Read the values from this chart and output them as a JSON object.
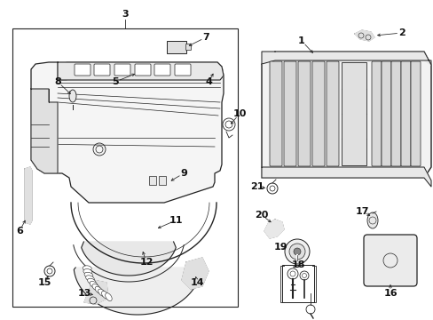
{
  "bg_color": "#ffffff",
  "lc": "#222222",
  "fig_w": 4.89,
  "fig_h": 3.6,
  "dpi": 100
}
